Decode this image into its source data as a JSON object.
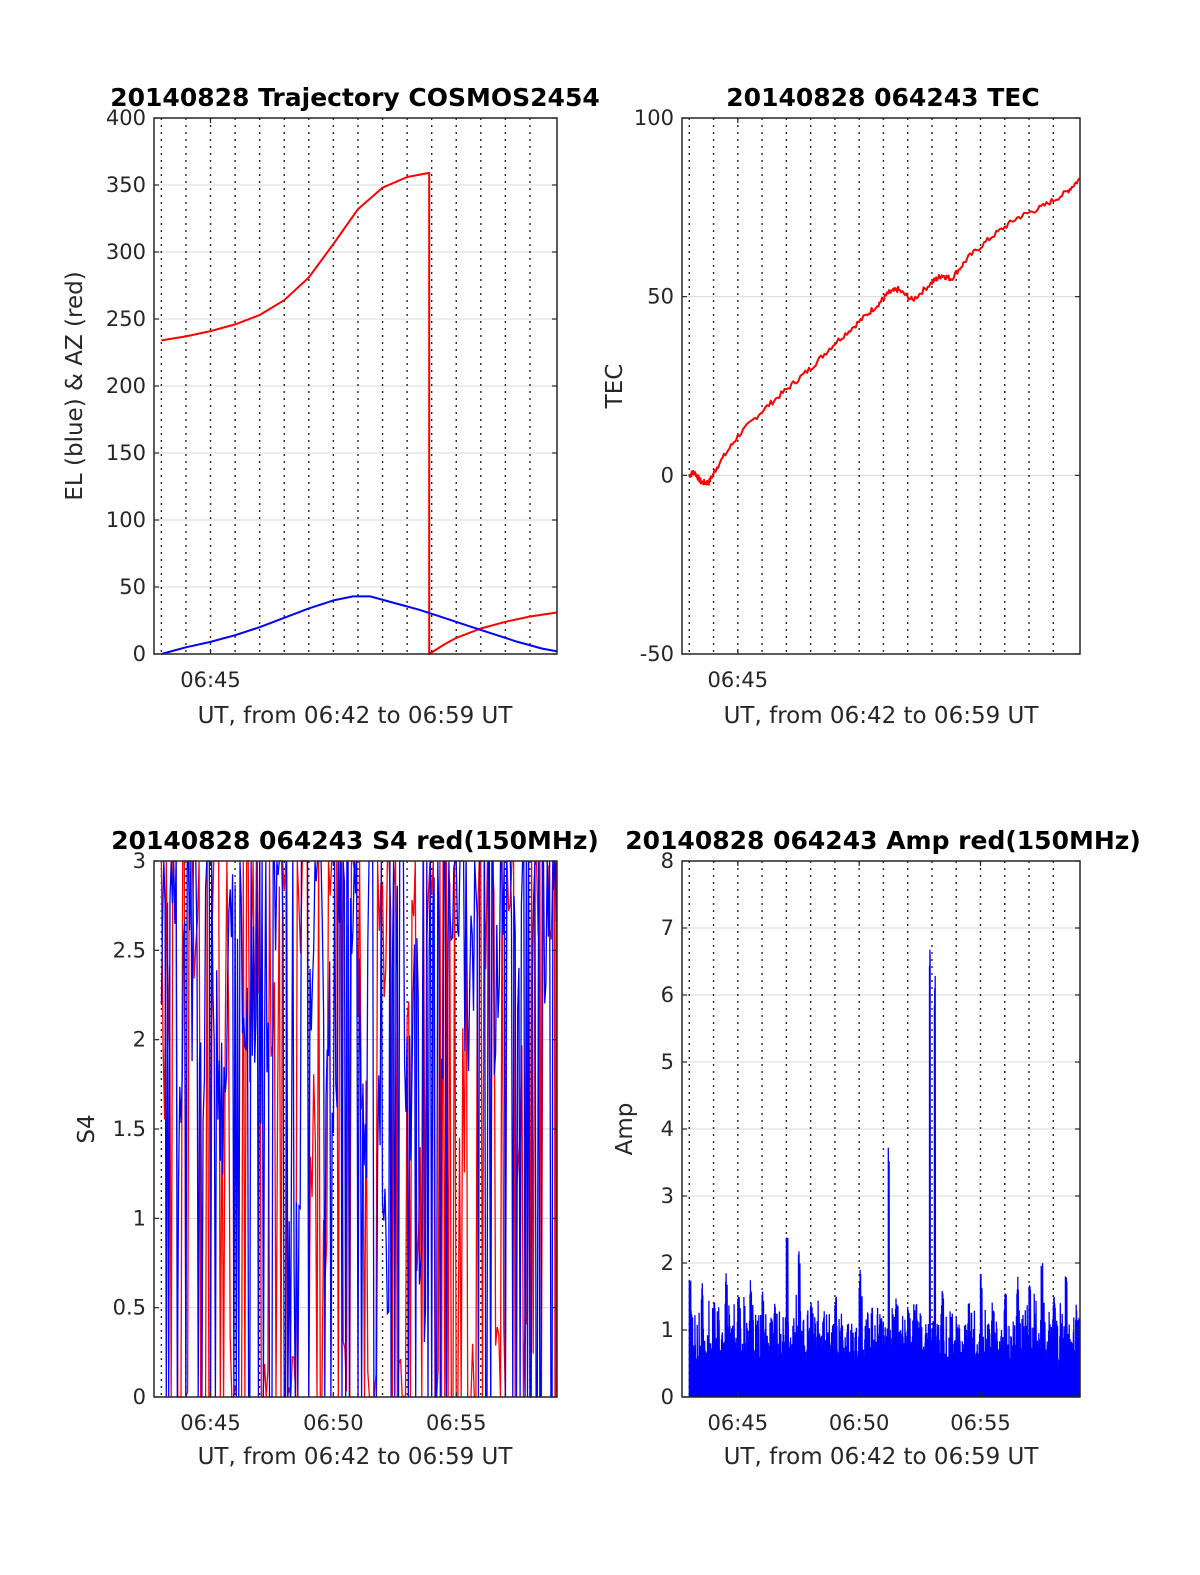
{
  "chart_data": [
    {
      "type": "line",
      "title": "20140828 Trajectory COSMOS2454",
      "xlabel": "UT, from 06:42 to 06:59 UT",
      "ylabel": "EL (blue) & AZ (red)",
      "xlim": [
        42.7,
        59.1
      ],
      "ylim": [
        0,
        400
      ],
      "yticks": [
        0,
        50,
        100,
        150,
        200,
        250,
        300,
        350,
        400
      ],
      "xticks": [
        {
          "value": 45,
          "label": "06:45"
        }
      ],
      "xgrid_minutes": [
        43,
        44,
        45,
        46,
        47,
        48,
        49,
        50,
        51,
        52,
        53,
        54,
        55,
        56,
        57,
        58
      ],
      "series": [
        {
          "color": "#ff0000",
          "segments": [
            {
              "x": [
                43.0,
                44.0,
                45.0,
                46.0,
                47.0,
                48.0,
                49.0,
                50.0,
                51.0,
                52.0,
                53.0,
                53.9
              ],
              "y": [
                234,
                237,
                241,
                246,
                253,
                264,
                281,
                306,
                332,
                348,
                356,
                359
              ]
            },
            {
              "x": [
                53.9,
                54.5,
                55.0,
                56.0,
                57.0,
                58.0,
                59.1
              ],
              "y": [
                0,
                7,
                12,
                19,
                24,
                28,
                31
              ]
            }
          ]
        },
        {
          "color": "#0000ff",
          "segments": [
            {
              "x": [
                43.0,
                44.0,
                45.0,
                46.0,
                47.0,
                48.0,
                49.0,
                50.0,
                50.8,
                51.5,
                52.5,
                53.5,
                54.5,
                55.5,
                56.5,
                57.5,
                58.5,
                59.1
              ],
              "y": [
                0,
                5,
                9,
                14,
                20,
                27,
                34,
                40,
                43,
                43,
                38,
                33,
                27,
                21,
                15,
                9,
                4,
                2
              ]
            }
          ]
        }
      ]
    },
    {
      "type": "line",
      "title": "20140828 064243 TEC",
      "xlabel": "UT, from 06:42 to 06:59 UT",
      "ylabel": "TEC",
      "xlim": [
        42.7,
        59.1
      ],
      "ylim": [
        -50,
        100
      ],
      "yticks": [
        -50,
        0,
        50,
        100
      ],
      "xticks": [
        {
          "value": 45,
          "label": "06:45"
        }
      ],
      "xgrid_minutes": [
        43,
        44,
        45,
        46,
        47,
        48,
        49,
        50,
        51,
        52,
        53,
        54,
        55,
        56,
        57,
        58
      ],
      "series": [
        {
          "color": "#ff0000",
          "x": [
            43.0,
            43.2,
            43.5,
            43.8,
            44.2,
            45.0,
            46.0,
            47.0,
            48.0,
            49.0,
            50.0,
            50.8,
            51.2,
            51.6,
            52.2,
            53.0,
            53.4,
            53.8,
            54.5,
            55.5,
            56.5,
            57.5,
            58.5,
            59.1
          ],
          "y": [
            0,
            1,
            -2,
            -2,
            3,
            11,
            18,
            24,
            30,
            37,
            43,
            48,
            51,
            52,
            49,
            54,
            56,
            55,
            61,
            67,
            72,
            75,
            79,
            83
          ]
        }
      ]
    },
    {
      "type": "line",
      "title": "20140828 064243 S4 red(150MHz)",
      "xlabel": "UT, from 06:42 to 06:59 UT",
      "ylabel": "S4",
      "xlim": [
        42.7,
        59.1
      ],
      "ylim": [
        0,
        3
      ],
      "yticks": [
        0,
        0.5,
        1,
        1.5,
        2,
        2.5,
        3
      ],
      "xticks": [
        {
          "value": 45,
          "label": "06:45"
        },
        {
          "value": 50,
          "label": "06:50"
        },
        {
          "value": 55,
          "label": "06:55"
        }
      ],
      "xgrid_minutes": [
        43,
        44,
        45,
        46,
        47,
        48,
        49,
        50,
        51,
        52,
        53,
        54,
        55,
        56,
        57,
        58
      ],
      "series": [
        {
          "color": "#ff0000",
          "x": [
            43.0,
            43.4,
            43.8,
            44.2,
            44.6,
            45.0,
            45.4,
            45.8,
            46.2,
            46.6,
            47.0,
            47.4,
            47.8,
            48.2,
            48.6,
            49.0,
            49.4,
            49.8,
            50.2,
            50.6,
            51.0,
            51.4,
            51.8,
            52.2,
            52.6,
            53.0,
            53.4,
            53.8,
            54.2,
            54.6,
            55.0,
            55.4,
            55.8,
            56.2,
            56.6,
            57.0,
            57.4,
            57.8,
            58.2,
            58.6,
            59.0
          ],
          "y": [
            2.0,
            3.0,
            0.0,
            2.7,
            0.0,
            3.0,
            1.8,
            0.0,
            3.0,
            2.2,
            0.0,
            1.9,
            3.0,
            0.0,
            2.8,
            1.5,
            0.8,
            2.9,
            0.0,
            3.0,
            1.9,
            0.0,
            2.6,
            3.0,
            0.0,
            2.4,
            1.0,
            3.0,
            0.0,
            2.9,
            1.7,
            0.0,
            3.0,
            2.5,
            0.0,
            3.0,
            1.6,
            0.0,
            2.8,
            3.0,
            0.0
          ]
        },
        {
          "color": "#0000ff",
          "x": [
            43.0,
            43.3,
            43.6,
            43.9,
            44.2,
            44.5,
            44.8,
            45.1,
            45.4,
            45.7,
            46.0,
            46.3,
            46.6,
            46.9,
            47.2,
            47.5,
            47.8,
            48.1,
            48.4,
            48.7,
            49.0,
            49.3,
            49.6,
            49.9,
            50.2,
            50.5,
            50.8,
            51.1,
            51.4,
            51.7,
            52.0,
            52.3,
            52.6,
            52.9,
            53.2,
            53.5,
            53.8,
            54.1,
            54.4,
            54.7,
            55.0,
            55.3,
            55.6,
            55.9,
            56.2,
            56.5,
            56.8,
            57.1,
            57.4,
            57.7,
            58.0,
            58.3,
            58.6,
            58.9
          ],
          "y": [
            2.4,
            3.0,
            1.5,
            2.9,
            2.2,
            1.8,
            3.0,
            2.0,
            1.6,
            2.8,
            3.0,
            1.9,
            2.3,
            1.2,
            2.0,
            2.7,
            3.0,
            1.3,
            0.9,
            2.9,
            2.5,
            3.0,
            2.0,
            1.6,
            3.0,
            2.4,
            2.8,
            1.5,
            2.9,
            1.7,
            0.9,
            2.6,
            3.0,
            1.6,
            2.2,
            0.6,
            2.9,
            3.0,
            2.2,
            2.7,
            3.0,
            2.0,
            2.5,
            2.9,
            3.0,
            2.2,
            2.8,
            3.0,
            2.4,
            2.9,
            2.7,
            3.0,
            2.6,
            3.0
          ]
        }
      ]
    },
    {
      "type": "line",
      "title": "20140828 064243 Amp red(150MHz)",
      "xlabel": "UT, from 06:42 to 06:59 UT",
      "ylabel": "Amp",
      "xlim": [
        42.7,
        59.1
      ],
      "ylim": [
        0,
        8
      ],
      "yticks": [
        0,
        1,
        2,
        3,
        4,
        5,
        6,
        7,
        8
      ],
      "xticks": [
        {
          "value": 45,
          "label": "06:45"
        },
        {
          "value": 50,
          "label": "06:50"
        },
        {
          "value": 55,
          "label": "06:55"
        }
      ],
      "xgrid_minutes": [
        43,
        44,
        45,
        46,
        47,
        48,
        49,
        50,
        51,
        52,
        53,
        54,
        55,
        56,
        57,
        58
      ],
      "series": [
        {
          "color": "#0000ff",
          "x": [
            43.0,
            43.5,
            44.0,
            44.5,
            45.0,
            45.5,
            46.0,
            46.5,
            47.0,
            47.5,
            48.0,
            48.5,
            49.0,
            49.5,
            50.0,
            50.5,
            50.9,
            51.2,
            51.5,
            52.0,
            52.5,
            52.9,
            53.1,
            53.4,
            54.0,
            54.5,
            55.0,
            55.5,
            56.0,
            56.5,
            57.0,
            57.5,
            58.0,
            58.5,
            59.0
          ],
          "peaks": [
            1.8,
            1.7,
            1.5,
            1.9,
            1.5,
            1.8,
            1.6,
            1.4,
            2.5,
            2.3,
            1.5,
            1.3,
            1.6,
            1.1,
            1.9,
            1.4,
            1.2,
            3.9,
            1.5,
            1.4,
            1.3,
            6.7,
            6.3,
            1.6,
            1.2,
            1.4,
            1.9,
            1.3,
            1.7,
            1.8,
            1.8,
            2.0,
            1.6,
            1.9,
            1.2
          ]
        }
      ]
    }
  ]
}
